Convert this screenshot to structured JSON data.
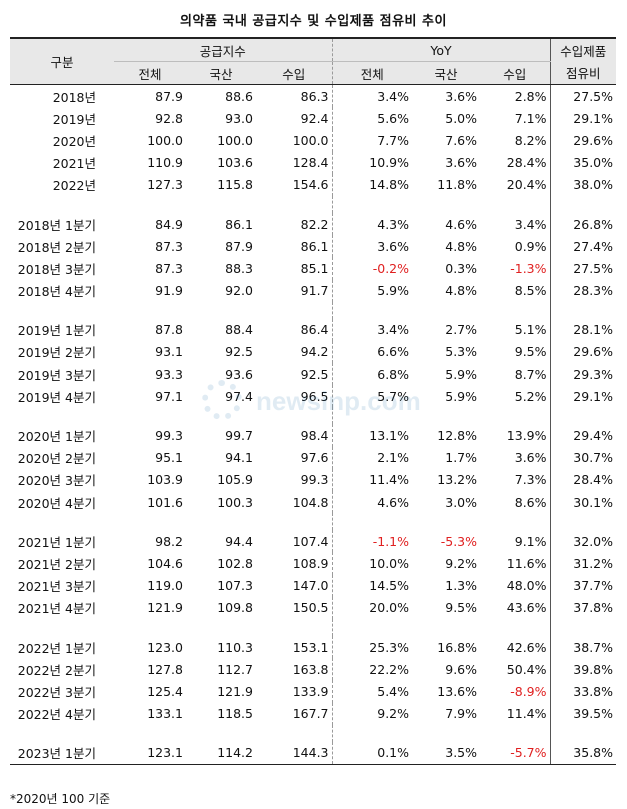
{
  "title": "의약품 국내 공급지수 및 수입제품 점유비 추이",
  "header": {
    "category": "구분",
    "supply_index": "공급지수",
    "yoy": "YoY",
    "import_share": "수입제품",
    "import_share_sub": "점유비",
    "total": "전체",
    "domestic": "국산",
    "import": "수입"
  },
  "rows": [
    {
      "label": "2018년",
      "s_total": "87.9",
      "s_dom": "88.6",
      "s_imp": "86.3",
      "y_total": "3.4%",
      "y_dom": "3.6%",
      "y_imp": "2.8%",
      "share": "27.5%"
    },
    {
      "label": "2019년",
      "s_total": "92.8",
      "s_dom": "93.0",
      "s_imp": "92.4",
      "y_total": "5.6%",
      "y_dom": "5.0%",
      "y_imp": "7.1%",
      "share": "29.1%"
    },
    {
      "label": "2020년",
      "s_total": "100.0",
      "s_dom": "100.0",
      "s_imp": "100.0",
      "y_total": "7.7%",
      "y_dom": "7.6%",
      "y_imp": "8.2%",
      "share": "29.6%"
    },
    {
      "label": "2021년",
      "s_total": "110.9",
      "s_dom": "103.6",
      "s_imp": "128.4",
      "y_total": "10.9%",
      "y_dom": "3.6%",
      "y_imp": "28.4%",
      "share": "35.0%"
    },
    {
      "label": "2022년",
      "s_total": "127.3",
      "s_dom": "115.8",
      "s_imp": "154.6",
      "y_total": "14.8%",
      "y_dom": "11.8%",
      "y_imp": "20.4%",
      "share": "38.0%"
    },
    {
      "gap": true
    },
    {
      "label": "2018년 1분기",
      "s_total": "84.9",
      "s_dom": "86.1",
      "s_imp": "82.2",
      "y_total": "4.3%",
      "y_dom": "4.6%",
      "y_imp": "3.4%",
      "share": "26.8%"
    },
    {
      "label": "2018년 2분기",
      "s_total": "87.3",
      "s_dom": "87.9",
      "s_imp": "86.1",
      "y_total": "3.6%",
      "y_dom": "4.8%",
      "y_imp": "0.9%",
      "share": "27.4%"
    },
    {
      "label": "2018년 3분기",
      "s_total": "87.3",
      "s_dom": "88.3",
      "s_imp": "85.1",
      "y_total": "-0.2%",
      "y_dom": "0.3%",
      "y_imp": "-1.3%",
      "share": "27.5%"
    },
    {
      "label": "2018년 4분기",
      "s_total": "91.9",
      "s_dom": "92.0",
      "s_imp": "91.7",
      "y_total": "5.9%",
      "y_dom": "4.8%",
      "y_imp": "8.5%",
      "share": "28.3%"
    },
    {
      "gap": true
    },
    {
      "label": "2019년 1분기",
      "s_total": "87.8",
      "s_dom": "88.4",
      "s_imp": "86.4",
      "y_total": "3.4%",
      "y_dom": "2.7%",
      "y_imp": "5.1%",
      "share": "28.1%"
    },
    {
      "label": "2019년 2분기",
      "s_total": "93.1",
      "s_dom": "92.5",
      "s_imp": "94.2",
      "y_total": "6.6%",
      "y_dom": "5.3%",
      "y_imp": "9.5%",
      "share": "29.6%"
    },
    {
      "label": "2019년 3분기",
      "s_total": "93.3",
      "s_dom": "93.6",
      "s_imp": "92.5",
      "y_total": "6.8%",
      "y_dom": "5.9%",
      "y_imp": "8.7%",
      "share": "29.3%"
    },
    {
      "label": "2019년 4분기",
      "s_total": "97.1",
      "s_dom": "97.4",
      "s_imp": "96.5",
      "y_total": "5.7%",
      "y_dom": "5.9%",
      "y_imp": "5.2%",
      "share": "29.1%"
    },
    {
      "gap": true
    },
    {
      "label": "2020년 1분기",
      "s_total": "99.3",
      "s_dom": "99.7",
      "s_imp": "98.4",
      "y_total": "13.1%",
      "y_dom": "12.8%",
      "y_imp": "13.9%",
      "share": "29.4%"
    },
    {
      "label": "2020년 2분기",
      "s_total": "95.1",
      "s_dom": "94.1",
      "s_imp": "97.6",
      "y_total": "2.1%",
      "y_dom": "1.7%",
      "y_imp": "3.6%",
      "share": "30.7%"
    },
    {
      "label": "2020년 3분기",
      "s_total": "103.9",
      "s_dom": "105.9",
      "s_imp": "99.3",
      "y_total": "11.4%",
      "y_dom": "13.2%",
      "y_imp": "7.3%",
      "share": "28.4%"
    },
    {
      "label": "2020년 4분기",
      "s_total": "101.6",
      "s_dom": "100.3",
      "s_imp": "104.8",
      "y_total": "4.6%",
      "y_dom": "3.0%",
      "y_imp": "8.6%",
      "share": "30.1%"
    },
    {
      "gap": true
    },
    {
      "label": "2021년 1분기",
      "s_total": "98.2",
      "s_dom": "94.4",
      "s_imp": "107.4",
      "y_total": "-1.1%",
      "y_dom": "-5.3%",
      "y_imp": "9.1%",
      "share": "32.0%"
    },
    {
      "label": "2021년 2분기",
      "s_total": "104.6",
      "s_dom": "102.8",
      "s_imp": "108.9",
      "y_total": "10.0%",
      "y_dom": "9.2%",
      "y_imp": "11.6%",
      "share": "31.2%"
    },
    {
      "label": "2021년 3분기",
      "s_total": "119.0",
      "s_dom": "107.3",
      "s_imp": "147.0",
      "y_total": "14.5%",
      "y_dom": "1.3%",
      "y_imp": "48.0%",
      "share": "37.7%"
    },
    {
      "label": "2021년 4분기",
      "s_total": "121.9",
      "s_dom": "109.8",
      "s_imp": "150.5",
      "y_total": "20.0%",
      "y_dom": "9.5%",
      "y_imp": "43.6%",
      "share": "37.8%"
    },
    {
      "gap": true
    },
    {
      "label": "2022년 1분기",
      "s_total": "123.0",
      "s_dom": "110.3",
      "s_imp": "153.1",
      "y_total": "25.3%",
      "y_dom": "16.8%",
      "y_imp": "42.6%",
      "share": "38.7%"
    },
    {
      "label": "2022년 2분기",
      "s_total": "127.8",
      "s_dom": "112.7",
      "s_imp": "163.8",
      "y_total": "22.2%",
      "y_dom": "9.6%",
      "y_imp": "50.4%",
      "share": "39.8%"
    },
    {
      "label": "2022년 3분기",
      "s_total": "125.4",
      "s_dom": "121.9",
      "s_imp": "133.9",
      "y_total": "5.4%",
      "y_dom": "13.6%",
      "y_imp": "-8.9%",
      "share": "33.8%"
    },
    {
      "label": "2022년 4분기",
      "s_total": "133.1",
      "s_dom": "118.5",
      "s_imp": "167.7",
      "y_total": "9.2%",
      "y_dom": "7.9%",
      "y_imp": "11.4%",
      "share": "39.5%"
    },
    {
      "gap": true
    },
    {
      "label": "2023년 1분기",
      "s_total": "123.1",
      "s_dom": "114.2",
      "s_imp": "144.3",
      "y_total": "0.1%",
      "y_dom": "3.5%",
      "y_imp": "-5.7%",
      "share": "35.8%"
    }
  ],
  "note": "*2020년 100 기준",
  "watermark": "newsinp.com",
  "colors": {
    "negative": "#e02020",
    "header_bg": "#e8e8e8"
  }
}
